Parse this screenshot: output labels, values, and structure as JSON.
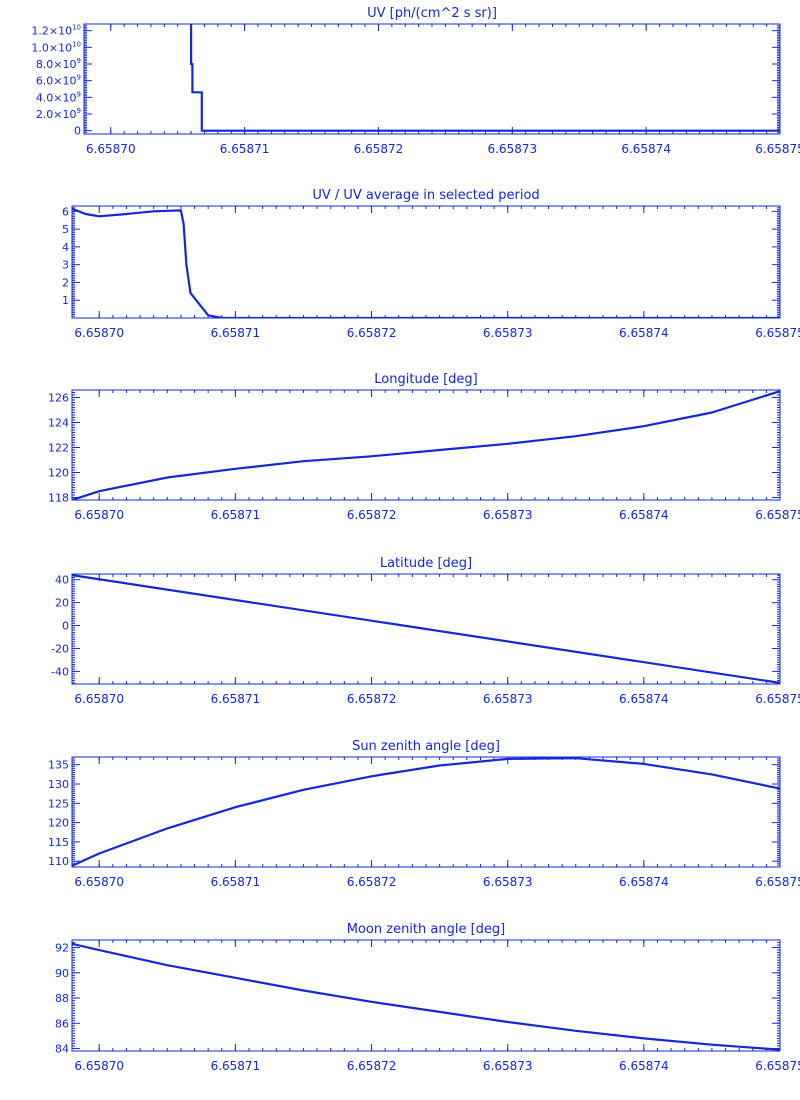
{
  "colors": {
    "line": "#1428d6",
    "axis": "#1428d6",
    "background": "#ffffff"
  },
  "chart_data": [
    {
      "type": "line",
      "title": "UV [ph/(cm^2 s sr)]",
      "xlim": [
        6.658698,
        6.65875
      ],
      "ylim": [
        -400000000,
        12800000000
      ],
      "xticks": [
        6.6587,
        6.65871,
        6.65872,
        6.65873,
        6.65874,
        6.65875
      ],
      "xticklabels": [
        "6.65870",
        "6.65871",
        "6.65872",
        "6.65873",
        "6.65874",
        "6.65875"
      ],
      "yticks": [
        0,
        2000000000,
        4000000000,
        6000000000,
        8000000000,
        10000000000,
        12000000000
      ],
      "yticklabels": [
        {
          "mant": "0",
          "exp": ""
        },
        {
          "mant": "2.0×10",
          "exp": "9"
        },
        {
          "mant": "4.0×10",
          "exp": "9"
        },
        {
          "mant": "6.0×10",
          "exp": "9"
        },
        {
          "mant": "8.0×10",
          "exp": "9"
        },
        {
          "mant": "1.0×10",
          "exp": "10"
        },
        {
          "mant": "1.2×10",
          "exp": "10"
        }
      ],
      "series": [
        {
          "x": [
            6.658706,
            6.658706,
            6.6587061,
            6.6587061,
            6.6587068,
            6.6587068,
            6.658707,
            6.65875
          ],
          "y": [
            12800000000,
            8000000000,
            8000000000,
            4600000000,
            4600000000,
            0,
            0,
            0
          ]
        }
      ]
    },
    {
      "type": "line",
      "title": "UV / UV average in selected period",
      "xlim": [
        6.658698,
        6.65875
      ],
      "ylim": [
        0,
        6.3
      ],
      "xticks": [
        6.6587,
        6.65871,
        6.65872,
        6.65873,
        6.65874,
        6.65875
      ],
      "xticklabels": [
        "6.65870",
        "6.65871",
        "6.65872",
        "6.65873",
        "6.65874",
        "6.65875"
      ],
      "yticks": [
        1,
        2,
        3,
        4,
        5,
        6
      ],
      "yticklabels": [
        "1",
        "2",
        "3",
        "4",
        "5",
        "6"
      ],
      "series": [
        {
          "x": [
            6.658698,
            6.658699,
            6.6587,
            6.658702,
            6.658704,
            6.658706,
            6.6587062,
            6.6587064,
            6.6587067,
            6.658708,
            6.658709,
            6.65875
          ],
          "y": [
            6.15,
            5.85,
            5.72,
            5.85,
            6.0,
            6.05,
            5.3,
            3.0,
            1.4,
            0.15,
            0.0,
            0.0
          ]
        }
      ]
    },
    {
      "type": "line",
      "title": "Longitude [deg]",
      "xlim": [
        6.658698,
        6.65875
      ],
      "ylim": [
        117.8,
        126.6
      ],
      "xticks": [
        6.6587,
        6.65871,
        6.65872,
        6.65873,
        6.65874,
        6.65875
      ],
      "xticklabels": [
        "6.65870",
        "6.65871",
        "6.65872",
        "6.65873",
        "6.65874",
        "6.65875"
      ],
      "yticks": [
        118,
        120,
        122,
        124,
        126
      ],
      "yticklabels": [
        "118",
        "120",
        "122",
        "124",
        "126"
      ],
      "series": [
        {
          "x": [
            6.658698,
            6.6587,
            6.658705,
            6.65871,
            6.658715,
            6.65872,
            6.658725,
            6.65873,
            6.658735,
            6.65874,
            6.658745,
            6.65875
          ],
          "y": [
            117.8,
            118.5,
            119.6,
            120.3,
            120.9,
            121.3,
            121.8,
            122.3,
            122.9,
            123.7,
            124.8,
            126.5
          ]
        }
      ]
    },
    {
      "type": "line",
      "title": "Latitude [deg]",
      "xlim": [
        6.658698,
        6.65875
      ],
      "ylim": [
        -51,
        45
      ],
      "xticks": [
        6.6587,
        6.65871,
        6.65872,
        6.65873,
        6.65874,
        6.65875
      ],
      "xticklabels": [
        "6.65870",
        "6.65871",
        "6.65872",
        "6.65873",
        "6.65874",
        "6.65875"
      ],
      "yticks": [
        -40,
        -20,
        0,
        20,
        40
      ],
      "yticklabels": [
        "-40",
        "-20",
        "0",
        "20",
        "40"
      ],
      "series": [
        {
          "x": [
            6.658698,
            6.65875
          ],
          "y": [
            44,
            -50
          ]
        }
      ]
    },
    {
      "type": "line",
      "title": "Sun zenith angle [deg]",
      "xlim": [
        6.658698,
        6.65875
      ],
      "ylim": [
        108.5,
        137
      ],
      "xticks": [
        6.6587,
        6.65871,
        6.65872,
        6.65873,
        6.65874,
        6.65875
      ],
      "xticklabels": [
        "6.65870",
        "6.65871",
        "6.65872",
        "6.65873",
        "6.65874",
        "6.65875"
      ],
      "yticks": [
        110,
        115,
        120,
        125,
        130,
        135
      ],
      "yticklabels": [
        "110",
        "115",
        "120",
        "125",
        "130",
        "135"
      ],
      "series": [
        {
          "x": [
            6.658698,
            6.6587,
            6.658705,
            6.65871,
            6.658715,
            6.65872,
            6.658725,
            6.65873,
            6.658735,
            6.65874,
            6.658745,
            6.65875
          ],
          "y": [
            108.8,
            112,
            118.5,
            124,
            128.5,
            132,
            134.8,
            136.5,
            136.7,
            135.2,
            132.5,
            128.8
          ]
        }
      ]
    },
    {
      "type": "line",
      "title": "Moon zenith angle [deg]",
      "xlim": [
        6.658698,
        6.65875
      ],
      "ylim": [
        83.8,
        92.6
      ],
      "xticks": [
        6.6587,
        6.65871,
        6.65872,
        6.65873,
        6.65874,
        6.65875
      ],
      "xticklabels": [
        "6.65870",
        "6.65871",
        "6.65872",
        "6.65873",
        "6.65874",
        "6.65875"
      ],
      "yticks": [
        84,
        86,
        88,
        90,
        92
      ],
      "yticklabels": [
        "84",
        "86",
        "88",
        "90",
        "92"
      ],
      "series": [
        {
          "x": [
            6.658698,
            6.6587,
            6.658705,
            6.65871,
            6.658715,
            6.65872,
            6.658725,
            6.65873,
            6.658735,
            6.65874,
            6.658745,
            6.65875
          ],
          "y": [
            92.3,
            91.8,
            90.6,
            89.6,
            88.6,
            87.7,
            86.9,
            86.1,
            85.4,
            84.8,
            84.3,
            83.9
          ]
        }
      ]
    }
  ]
}
